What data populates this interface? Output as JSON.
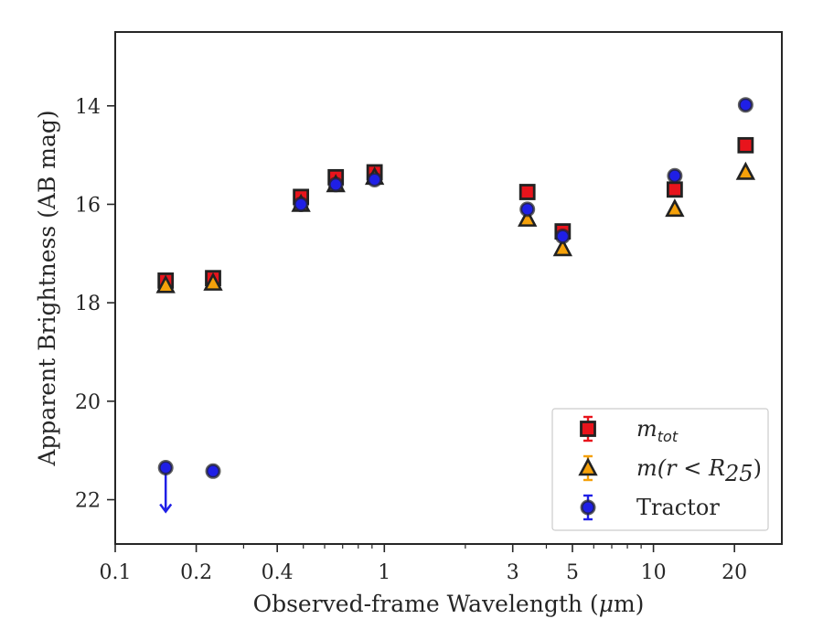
{
  "chart_data": {
    "type": "scatter",
    "xlabel_main": "Observed-frame Wavelength (",
    "xlabel_mu": "μ",
    "xlabel_end": "m)",
    "ylabel": "Apparent Brightness (AB mag)",
    "x_scale": "log",
    "xlim": [
      0.1,
      30
    ],
    "ylim": [
      22.9,
      12.5
    ],
    "y_inverted": true,
    "x_ticks": [
      0.1,
      0.2,
      0.4,
      1,
      3,
      5,
      10,
      20
    ],
    "x_tick_labels": [
      "0.1",
      "0.2",
      "0.4",
      "1",
      "3",
      "5",
      "10",
      "20"
    ],
    "y_ticks": [
      14,
      16,
      18,
      20,
      22
    ],
    "y_tick_labels": [
      "14",
      "16",
      "18",
      "20",
      "22"
    ],
    "legend_position": "lower-right",
    "series": [
      {
        "key": "mtot",
        "name": "m_tot",
        "legend_main": "m",
        "legend_sub": "tot",
        "marker": "square",
        "color": "#e8141c",
        "error_color": "#e8141c",
        "x": [
          0.154,
          0.231,
          0.49,
          0.66,
          0.92,
          3.4,
          4.6,
          12,
          22
        ],
        "y": [
          17.55,
          17.5,
          15.85,
          15.45,
          15.35,
          15.75,
          16.55,
          15.7,
          14.8
        ]
      },
      {
        "key": "m25",
        "name": "m(r < R_25)",
        "legend_main": "m(r < R",
        "legend_sub": "25",
        "legend_close": ")",
        "marker": "triangle",
        "color": "#f5a10a",
        "error_color": "#f5a10a",
        "x": [
          0.154,
          0.231,
          0.49,
          0.66,
          0.92,
          3.4,
          4.6,
          12,
          22
        ],
        "y": [
          17.65,
          17.6,
          16.0,
          15.6,
          15.45,
          16.3,
          16.9,
          16.1,
          15.35
        ]
      },
      {
        "key": "tractor",
        "name": "Tractor",
        "legend_main": "Tractor",
        "marker": "circle",
        "color": "#1f1fe6",
        "error_color": "#1f1fe6",
        "x": [
          0.154,
          0.231,
          0.49,
          0.66,
          0.92,
          3.4,
          4.6,
          12,
          22
        ],
        "y": [
          21.35,
          21.42,
          16.0,
          15.6,
          15.5,
          16.1,
          16.65,
          15.42,
          13.98
        ],
        "upper_limits": [
          true,
          false,
          false,
          false,
          false,
          false,
          false,
          false,
          false
        ]
      }
    ]
  }
}
